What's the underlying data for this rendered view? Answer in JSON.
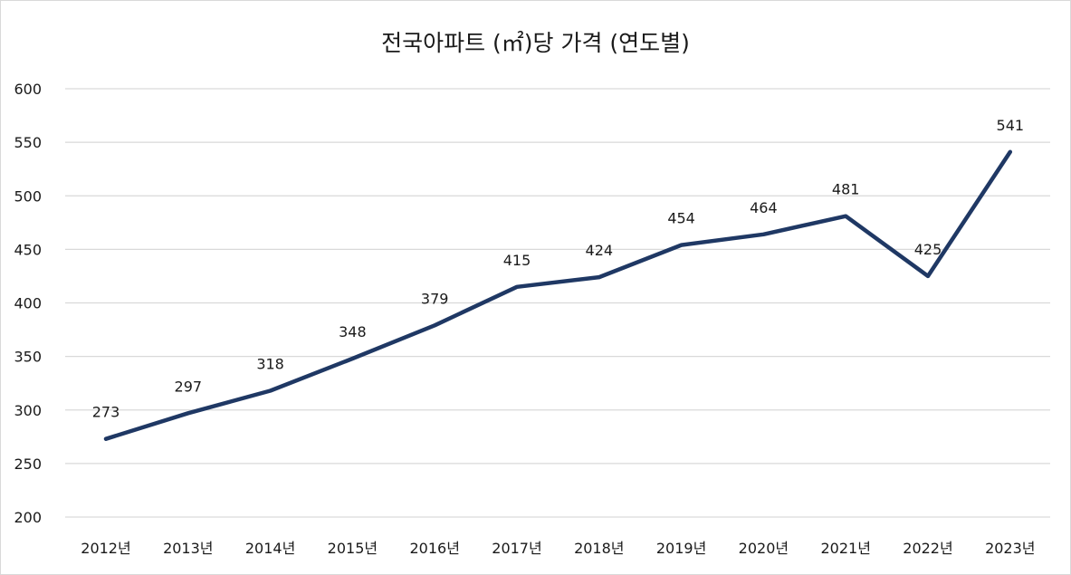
{
  "chart_data": {
    "type": "line",
    "title": "전국아파트 (㎡)당 가격 (연도별)",
    "xlabel": "",
    "ylabel": "",
    "categories": [
      "2012년",
      "2013년",
      "2014년",
      "2015년",
      "2016년",
      "2017년",
      "2018년",
      "2019년",
      "2020년",
      "2021년",
      "2022년",
      "2023년"
    ],
    "series": [
      {
        "name": "전국아파트 (㎡)당 가격",
        "values": [
          273,
          297,
          318,
          348,
          379,
          415,
          424,
          454,
          464,
          481,
          425,
          541
        ],
        "color": "#1f3864"
      }
    ],
    "ylim": [
      200,
      600
    ],
    "yticks": [
      200,
      250,
      300,
      350,
      400,
      450,
      500,
      550,
      600
    ],
    "grid": true,
    "legend": "none"
  },
  "colors": {
    "line": "#1f3864",
    "grid": "#d9d9d9",
    "text": "#1a1a1a"
  }
}
